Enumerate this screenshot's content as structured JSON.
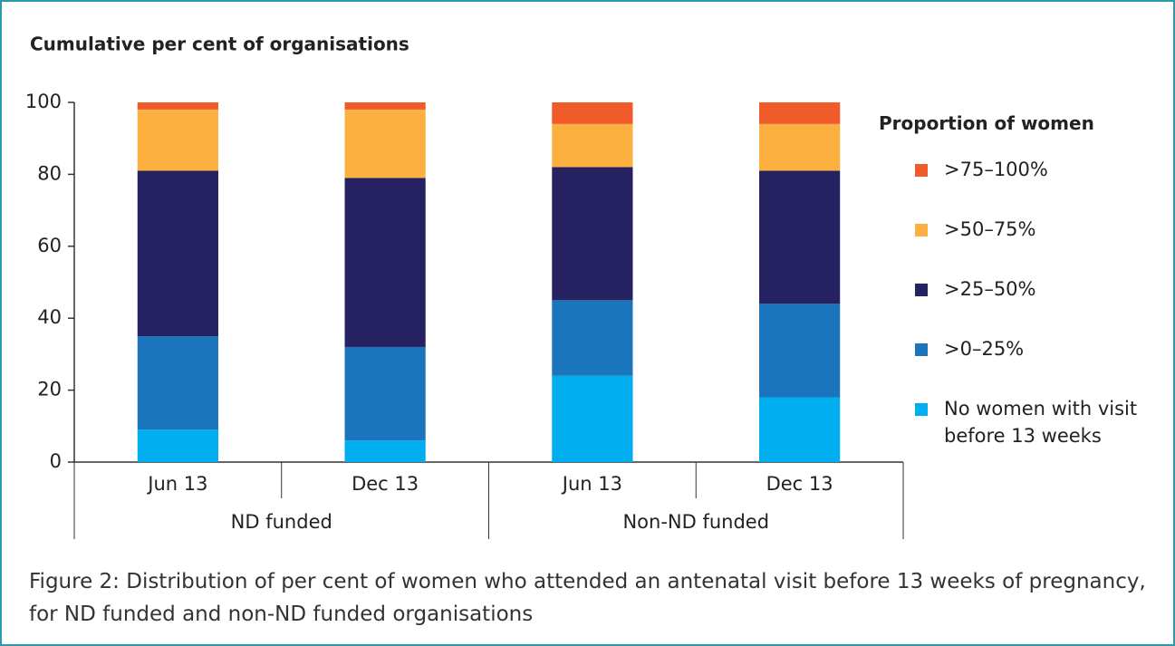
{
  "chart_data": {
    "type": "stacked_bar",
    "title": "Cumulative per cent of organisations",
    "groups": [
      {
        "name": "ND funded",
        "categories": [
          "Jun 13",
          "Dec 13"
        ]
      },
      {
        "name": "Non-ND funded",
        "categories": [
          "Jun 13",
          "Dec 13"
        ]
      }
    ],
    "series": [
      {
        "name": "No women with visit before 13 weeks",
        "color": "#00aeef",
        "values": [
          9,
          6,
          24,
          18
        ]
      },
      {
        "name": ">0–25%",
        "color": "#1b75bc",
        "values": [
          26,
          26,
          21,
          26
        ]
      },
      {
        "name": ">25–50%",
        "color": "#262262",
        "values": [
          46,
          47,
          37,
          37
        ]
      },
      {
        "name": ">50–75%",
        "color": "#fbb040",
        "values": [
          17,
          19,
          12,
          13
        ]
      },
      {
        "name": ">75–100%",
        "color": "#f15a29",
        "values": [
          2,
          2,
          6,
          6
        ]
      }
    ],
    "ylim": [
      0,
      100
    ],
    "yticks": [
      0,
      20,
      40,
      60,
      80,
      100
    ],
    "legend_title": "Proportion of women",
    "legend_position": "right",
    "caption": "Figure 2: Distribution of per cent of women who attended an antenatal visit before 13 weeks of pregnancy,  for ND funded and non-ND funded organisations"
  }
}
